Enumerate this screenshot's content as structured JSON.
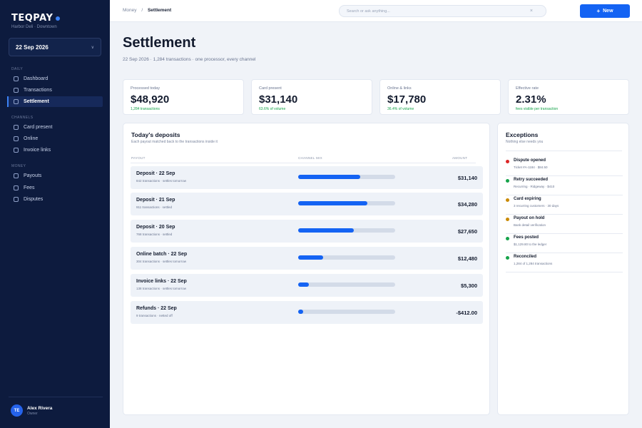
{
  "brand": {
    "name": "TEQPAY",
    "subtitle": "Harbor Deli · Downtown"
  },
  "date_picker": {
    "value": "22 Sep 2026"
  },
  "sidebar": {
    "sections": [
      {
        "label": "DAILY",
        "items": [
          {
            "label": "Dashboard",
            "active": false
          },
          {
            "label": "Transactions",
            "active": false
          },
          {
            "label": "Settlement",
            "active": true
          }
        ]
      },
      {
        "label": "CHANNELS",
        "items": [
          {
            "label": "Card present",
            "active": false
          },
          {
            "label": "Online",
            "active": false
          },
          {
            "label": "Invoice links",
            "active": false
          }
        ]
      },
      {
        "label": "MONEY",
        "items": [
          {
            "label": "Payouts",
            "active": false
          },
          {
            "label": "Fees",
            "active": false
          },
          {
            "label": "Disputes",
            "active": false
          }
        ]
      }
    ]
  },
  "user": {
    "initials": "TE",
    "name": "Alex Rivera",
    "role": "Owner"
  },
  "breadcrumb": {
    "parent": "Money",
    "separator": "/",
    "current": "Settlement"
  },
  "search": {
    "placeholder": "Search or ask anything...",
    "clear_icon": "×"
  },
  "new_button": {
    "icon": "+",
    "label": "New"
  },
  "page": {
    "title": "Settlement",
    "subtitle": "22 Sep 2026 · 1,284 transactions · one processor, every channel"
  },
  "stats": [
    {
      "label": "Processed today",
      "value": "$48,920",
      "note": "1,284 transactions"
    },
    {
      "label": "Card present",
      "value": "$31,140",
      "note": "63.6% of volume"
    },
    {
      "label": "Online & links",
      "value": "$17,780",
      "note": "36.4% of volume"
    },
    {
      "label": "Effective rate",
      "value": "2.31%",
      "note": "fees visible per transaction"
    }
  ],
  "deposits": {
    "title": "Today's deposits",
    "subtitle": "Each payout matched back to the transactions inside it",
    "columns": {
      "payout": "PAYOUT",
      "channel_mix": "CHANNEL MIX",
      "amount": "AMOUNT"
    },
    "rows": [
      {
        "name": "Deposit · 22 Sep",
        "meta": "842 transactions · settles tomorrow",
        "mix": 0.64,
        "amount": "$31,140"
      },
      {
        "name": "Deposit · 21 Sep",
        "meta": "911 transactions · settled",
        "mix": 0.71,
        "amount": "$34,280"
      },
      {
        "name": "Deposit · 20 Sep",
        "meta": "768 transactions · settled",
        "mix": 0.57,
        "amount": "$27,650"
      },
      {
        "name": "Online batch · 22 Sep",
        "meta": "304 transactions · settles tomorrow",
        "mix": 0.26,
        "amount": "$12,480"
      },
      {
        "name": "Invoice links · 22 Sep",
        "meta": "138 transactions · settles tomorrow",
        "mix": 0.11,
        "amount": "$5,300"
      },
      {
        "name": "Refunds · 22 Sep",
        "meta": "9 transactions · netted off",
        "mix": 0.05,
        "amount": "-$412.00"
      }
    ]
  },
  "exceptions": {
    "title": "Exceptions",
    "subtitle": "Nothing else needs you",
    "items": [
      {
        "title": "Dispute opened",
        "detail": "Ticket #A-1184 · $84.50",
        "color": "#dc2626"
      },
      {
        "title": "Retry succeeded",
        "detail": "Recurring · Ridgeway · $410",
        "color": "#16a34a"
      },
      {
        "title": "Card expiring",
        "detail": "3 recurring customers · 30 days",
        "color": "#ca8a04"
      },
      {
        "title": "Payout on hold",
        "detail": "Bank detail verification",
        "color": "#ca8a04"
      },
      {
        "title": "Fees posted",
        "detail": "$1,129.80 to the ledger",
        "color": "#16a34a"
      },
      {
        "title": "Reconciled",
        "detail": "1,284 of 1,284 transactions",
        "color": "#16a34a"
      }
    ]
  }
}
